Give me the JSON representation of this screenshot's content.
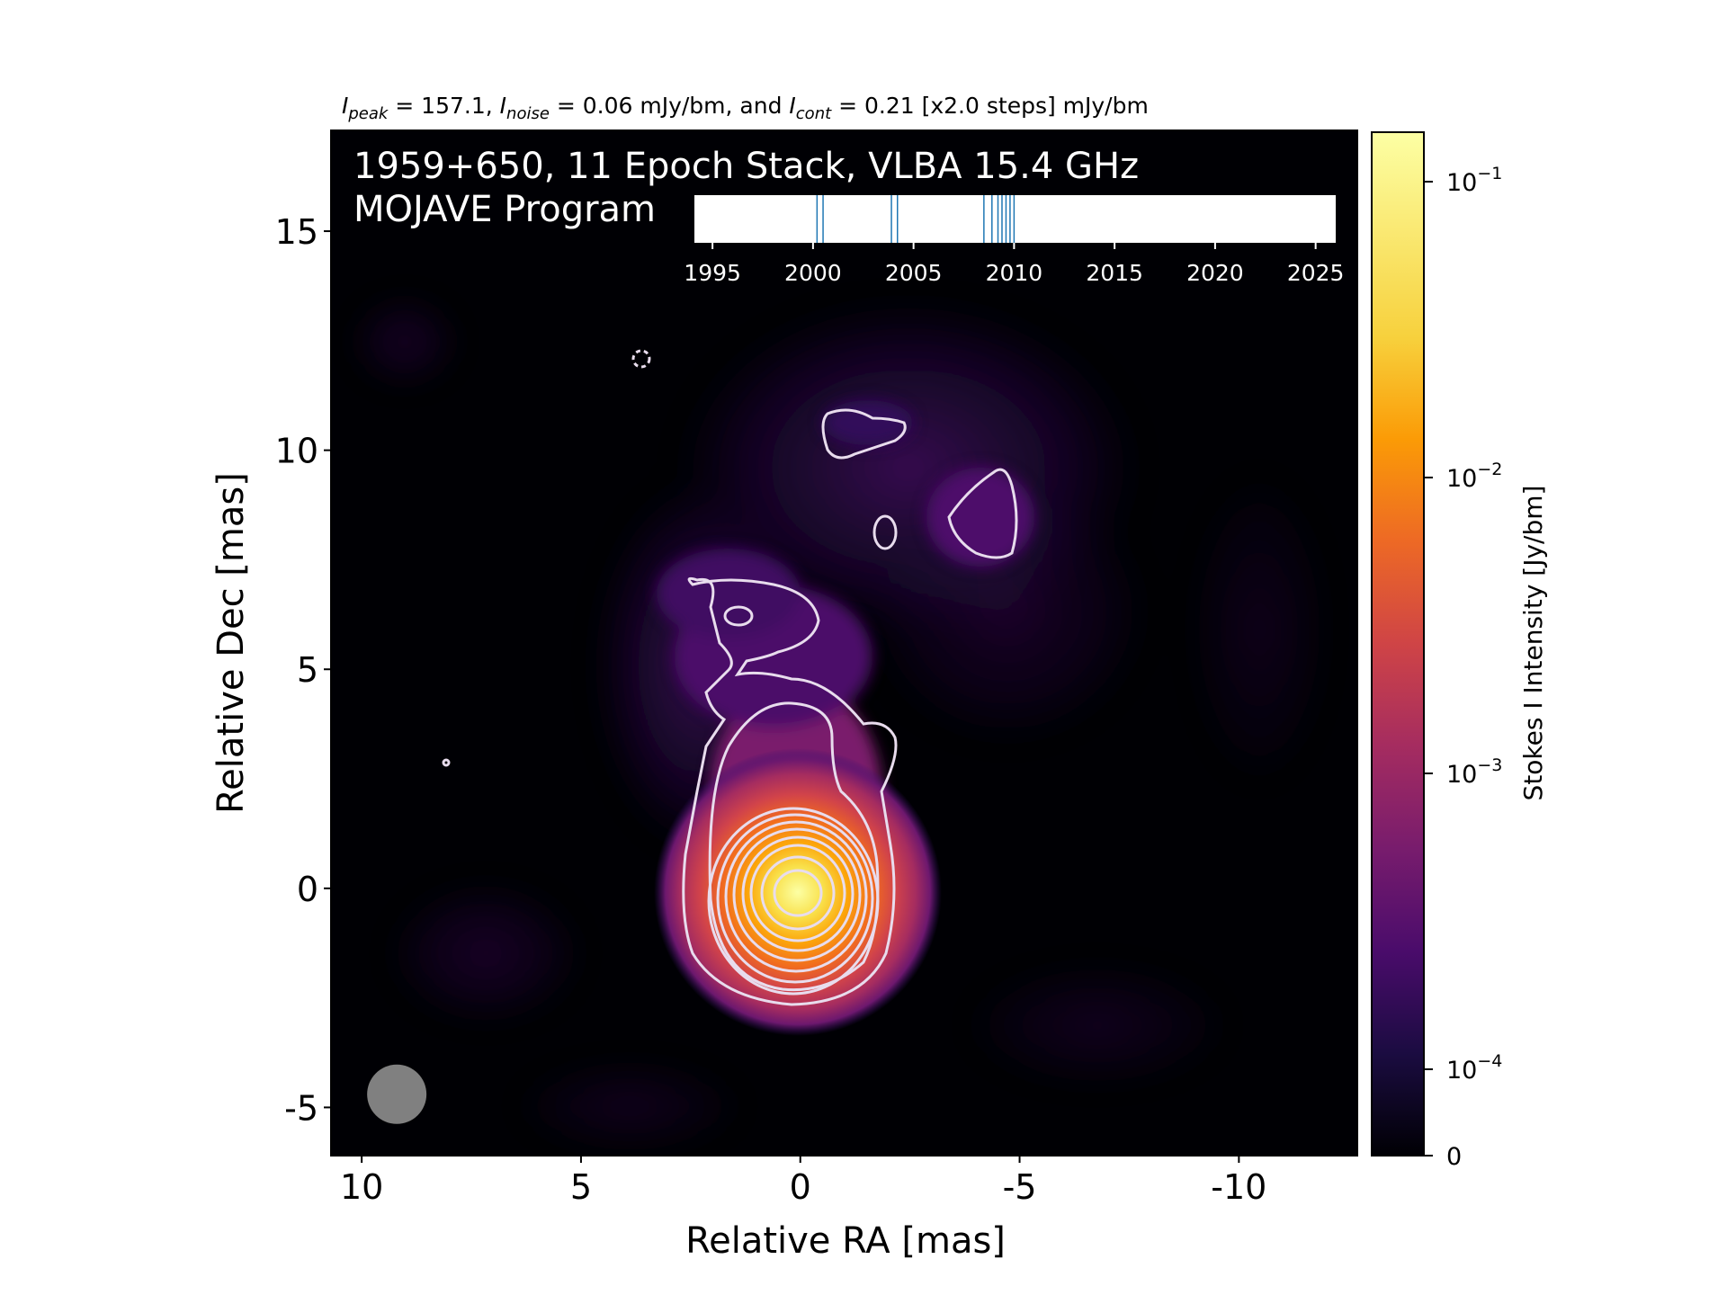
{
  "chart_data": {
    "type": "heatmap",
    "header": {
      "peak_sym": "I",
      "peak_sub": "peak",
      "peak_text": " = 157.1, ",
      "noise_sym": "I",
      "noise_sub": "noise",
      "noise_text": " = 0.06 mJy/bm, and ",
      "cont_sym": "I",
      "cont_sub": "cont",
      "cont_text": " = 0.21 [x2.0 steps] mJy/bm"
    },
    "title_line1": "1959+650, 11 Epoch Stack, VLBA 15.4 GHz",
    "title_line2": "MOJAVE Program",
    "xlabel": "Relative RA [mas]",
    "ylabel": "Relative Dec [mas]",
    "xlim": [
      10.7,
      -12.7
    ],
    "ylim": [
      -6.1,
      17.3
    ],
    "x_ticks": [
      {
        "value": 10,
        "label": "10"
      },
      {
        "value": 5,
        "label": "5"
      },
      {
        "value": 0,
        "label": "0"
      },
      {
        "value": -5,
        "label": "-5"
      },
      {
        "value": -10,
        "label": "-10"
      }
    ],
    "y_ticks": [
      {
        "value": -5,
        "label": "-5"
      },
      {
        "value": 0,
        "label": "0"
      },
      {
        "value": 5,
        "label": "5"
      },
      {
        "value": 10,
        "label": "10"
      },
      {
        "value": 15,
        "label": "15"
      }
    ],
    "colorbar": {
      "label": "Stokes I Intensity [Jy/bm]",
      "colormap": "inferno",
      "ticks": [
        {
          "value": 0,
          "label": "0"
        },
        {
          "value": 0.0001,
          "label": "10",
          "exp": "−4"
        },
        {
          "value": 0.001,
          "label": "10",
          "exp": "−3"
        },
        {
          "value": 0.01,
          "label": "10",
          "exp": "−2"
        },
        {
          "value": 0.1,
          "label": "10",
          "exp": "−1"
        }
      ]
    },
    "epoch_timeline": {
      "xlim": [
        1994.1,
        2026.0
      ],
      "ticks": [
        1995,
        2000,
        2005,
        2010,
        2015,
        2020,
        2025
      ],
      "epochs": [
        2000.2,
        2000.5,
        2003.9,
        2004.2,
        2008.5,
        2008.9,
        2009.2,
        2009.4,
        2009.6,
        2009.8,
        2010.0
      ],
      "color": "#1f77b4"
    },
    "beam": {
      "ra": 9.2,
      "dec": -4.7,
      "major_mas": 1.35,
      "minor_mas": 1.35
    },
    "core": {
      "ra": 0.1,
      "dec": -0.05,
      "peak_mJy": 157.1
    },
    "contour_levels_mJy": [
      0.21,
      0.42,
      0.84,
      1.68,
      3.36,
      6.72,
      13.44,
      26.88,
      53.76,
      107.52
    ]
  }
}
